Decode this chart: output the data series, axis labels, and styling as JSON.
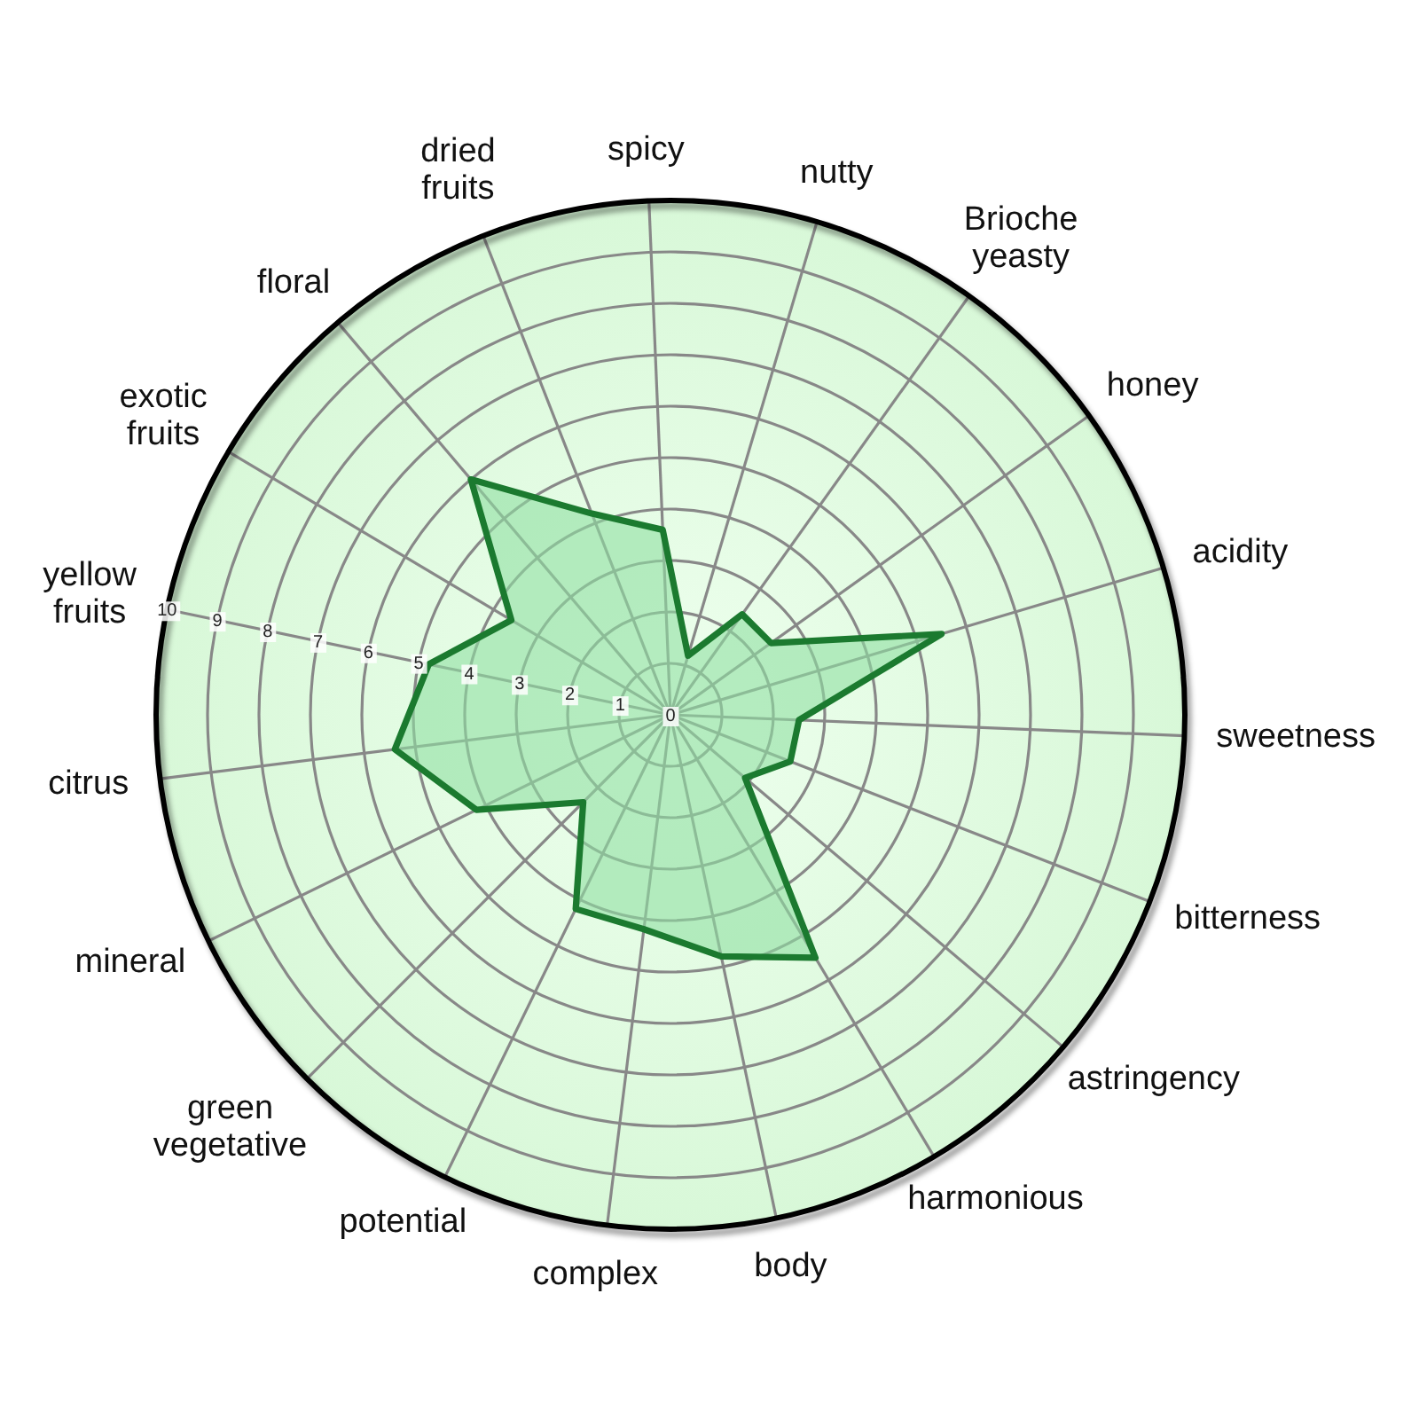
{
  "chart_data": {
    "type": "radar",
    "categories": [
      "spicy",
      "nutty",
      "Brioche yeasty",
      "honey",
      "acidity",
      "sweetness",
      "bitterness",
      "astringency",
      "harmonious",
      "body",
      "complex",
      "potential",
      "green vegetative",
      "mineral",
      "citrus",
      "yellow fruits",
      "exotic fruits",
      "floral",
      "dried fruits"
    ],
    "series": [
      {
        "color": "#1b7a2f",
        "values": [
          3.6,
          1.2,
          2.4,
          2.4,
          5.5,
          2.5,
          2.5,
          1.9,
          5.5,
          4.8,
          4.2,
          4.2,
          2.4,
          4.2,
          5.4,
          4.8,
          3.6,
          6.0,
          4.2
        ]
      }
    ],
    "ylim": [
      0,
      10
    ],
    "yticks": [
      0,
      1,
      2,
      3,
      4,
      5,
      6,
      7,
      8,
      9,
      10
    ],
    "grid": true
  }
}
